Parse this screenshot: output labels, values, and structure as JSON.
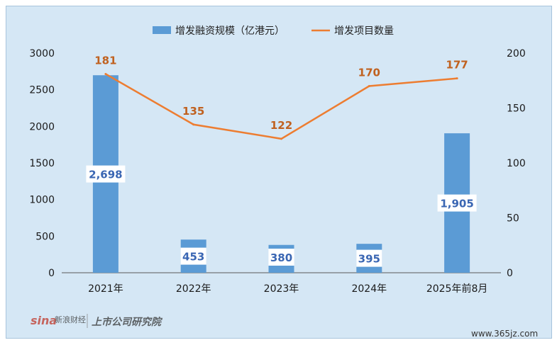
{
  "chart_data": {
    "type": "bar",
    "categories": [
      "2021年",
      "2022年",
      "2023年",
      "2024年",
      "2025年前8月"
    ],
    "series": [
      {
        "name": "增发融资规模（亿港元）",
        "type": "bar",
        "axis": "left",
        "values": [
          2698,
          453,
          380,
          395,
          1905
        ],
        "labels": [
          "2,698",
          "453",
          "380",
          "395",
          "1,905"
        ],
        "color": "#5b9bd5"
      },
      {
        "name": "增发项目数量",
        "type": "line",
        "axis": "right",
        "values": [
          181,
          135,
          122,
          170,
          177
        ],
        "labels": [
          "181",
          "135",
          "122",
          "170",
          "177"
        ],
        "color": "#ed7d31"
      }
    ],
    "ylim_left": [
      0,
      3000
    ],
    "yticks_left": [
      "0",
      "500",
      "1000",
      "1500",
      "2000",
      "2500",
      "3000"
    ],
    "ylim_right": [
      0,
      200
    ],
    "yticks_right": [
      "0",
      "50",
      "100",
      "150",
      "200"
    ],
    "legend_position": "top",
    "grid": false
  },
  "colors": {
    "background": "#d5e7f5",
    "bar": "#5b9bd5",
    "line": "#ed7d31",
    "bar_label": "#3a66b3",
    "line_label": "#c0611f"
  },
  "watermark": {
    "sina_logo": "sina",
    "sina_text": "新浪财经",
    "institute": "上市公司研究院",
    "site": "www.365jz.com"
  }
}
